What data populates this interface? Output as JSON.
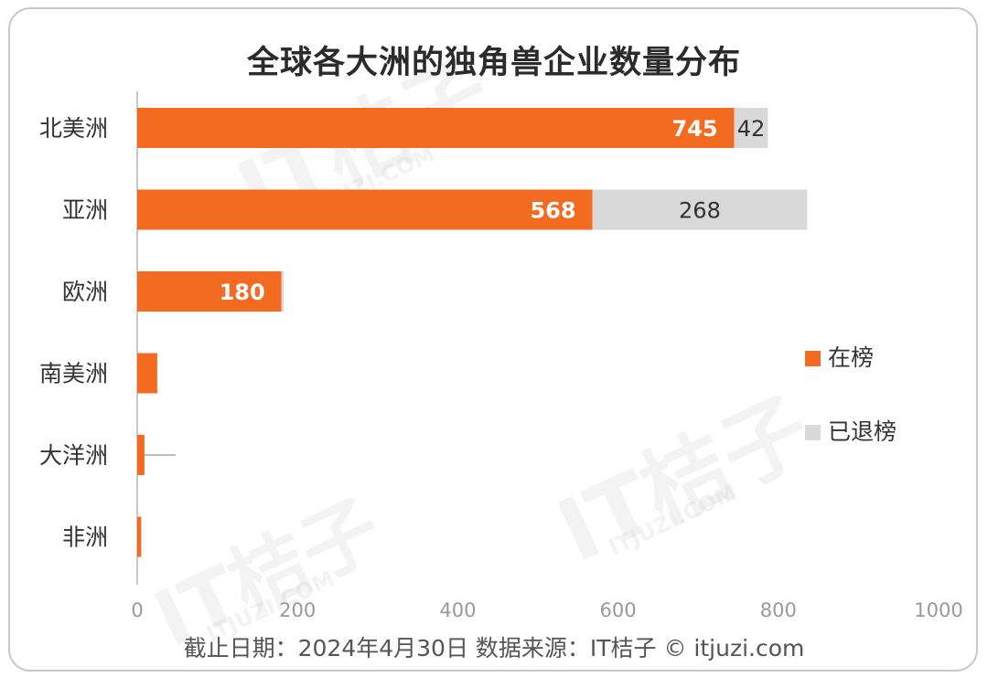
{
  "title": "全球各大洲的独角兽企业数量分布",
  "footer": "截止日期：2024年4月30日    数据来源：IT桔子 © itjuzi.com",
  "watermark": {
    "brand": "IT桔子",
    "url": "ITJUZI.COM"
  },
  "colors": {
    "on_list": "#f26b21",
    "exited": "#d9d9d9",
    "axis": "#c8c8c8",
    "tick": "#999999"
  },
  "chart_data": {
    "type": "bar",
    "orientation": "horizontal",
    "stacked": true,
    "categories": [
      "北美洲",
      "亚洲",
      "欧洲",
      "南美洲",
      "大洋洲",
      "非洲"
    ],
    "series": [
      {
        "name": "在榜",
        "values": [
          745,
          568,
          180,
          25,
          9,
          5
        ],
        "labels": [
          "745",
          "568",
          "180",
          "",
          "",
          ""
        ]
      },
      {
        "name": "已退榜",
        "values": [
          42,
          268,
          3,
          0,
          0,
          0
        ],
        "labels": [
          "42",
          "268",
          "",
          "",
          "",
          ""
        ]
      }
    ],
    "xlim": [
      0,
      1000
    ],
    "xticks": [
      0,
      200,
      400,
      600,
      800,
      1000
    ],
    "grid": false,
    "legend_position": "right"
  }
}
